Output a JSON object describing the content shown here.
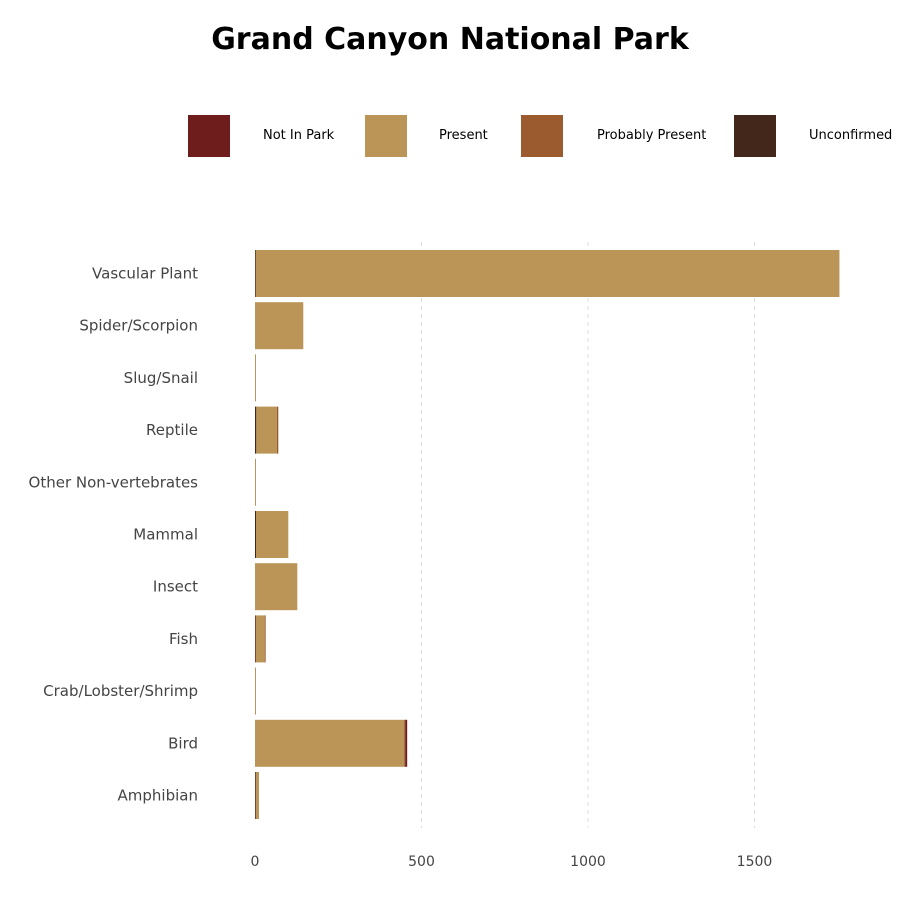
{
  "chart_data": {
    "type": "bar",
    "orientation": "horizontal",
    "stacked": true,
    "title": "Grand Canyon National Park",
    "xlabel": "",
    "ylabel": "",
    "xlim": [
      0,
      1800
    ],
    "x_ticks": [
      0,
      500,
      1000,
      1500
    ],
    "grid": "vertical dashed",
    "legend_position": "top",
    "categories": [
      "Vascular Plant",
      "Spider/Scorpion",
      "Slug/Snail",
      "Reptile",
      "Other Non-vertebrates",
      "Mammal",
      "Insect",
      "Fish",
      "Crab/Lobster/Shrimp",
      "Bird",
      "Amphibian"
    ],
    "series": [
      {
        "name": "Unconfirmed",
        "color": "#42271a",
        "values": [
          2,
          0,
          0,
          4,
          0,
          3,
          0,
          0,
          0,
          0,
          2
        ]
      },
      {
        "name": "Not In Park",
        "color": "#6e1c1c",
        "values": [
          0,
          0,
          0,
          0,
          0,
          0,
          0,
          2,
          0,
          0,
          0
        ]
      },
      {
        "name": "Present",
        "color": "#bb9558",
        "values": [
          1753,
          145,
          3,
          62,
          2,
          97,
          127,
          27,
          1,
          448,
          10
        ]
      },
      {
        "name": "Probably Present",
        "color": "#9b5b2e",
        "values": [
          0,
          0,
          0,
          4,
          0,
          0,
          0,
          2,
          0,
          3,
          0
        ]
      },
      {
        "name": "Not In Park",
        "color": "#6e1c1c",
        "values": [
          0,
          0,
          0,
          0,
          0,
          0,
          0,
          0,
          0,
          6,
          0
        ]
      }
    ],
    "legend": [
      {
        "label": "Not In Park",
        "color": "#6e1c1c"
      },
      {
        "label": "Present",
        "color": "#bb9558"
      },
      {
        "label": "Probably Present",
        "color": "#9b5b2e"
      },
      {
        "label": "Unconfirmed",
        "color": "#42271a"
      }
    ]
  }
}
